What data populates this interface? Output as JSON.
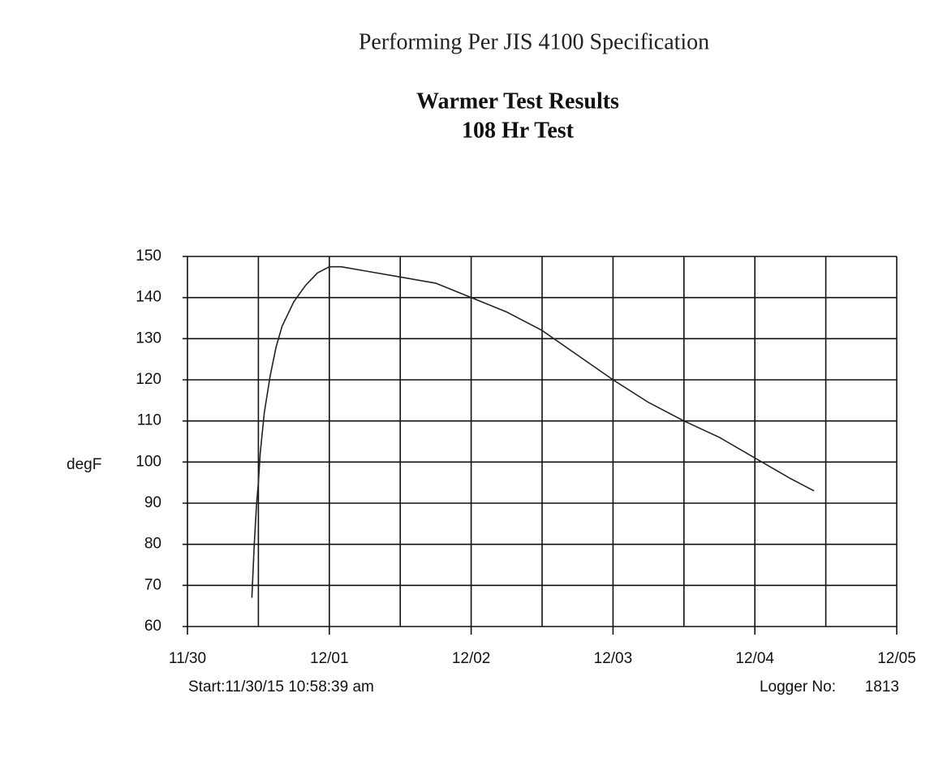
{
  "chart_data": {
    "type": "line",
    "header": "Performing Per JIS 4100 Specification",
    "title": "Warmer Test Results",
    "subtitle": "108 Hr Test",
    "y_label": "degF",
    "start_note": "Start:11/30/15 10:58:39 am",
    "logger_label": "Logger No:",
    "logger_number": "1813",
    "x": [
      10.9,
      11.3,
      11.7,
      12.0,
      12.3,
      13,
      14,
      15,
      16,
      18,
      20,
      22,
      24,
      26,
      30,
      36,
      42,
      48,
      54,
      60,
      66,
      72,
      78,
      84,
      90,
      96,
      102,
      106
    ],
    "series": [
      {
        "color": "#222222",
        "values": [
          67,
          80,
          90,
          95,
          102,
          112,
          121,
          128,
          133,
          139,
          143,
          146,
          147.5,
          147.5,
          146.5,
          145,
          143.5,
          140,
          136.5,
          132,
          126,
          120,
          114.5,
          110,
          106,
          101,
          96,
          93
        ]
      }
    ],
    "xlim": [
      0,
      120
    ],
    "xticks": [
      {
        "value": 0,
        "label": "11/30"
      },
      {
        "value": 24,
        "label": "12/01"
      },
      {
        "value": 48,
        "label": "12/02"
      },
      {
        "value": 72,
        "label": "12/03"
      },
      {
        "value": 96,
        "label": "12/04"
      },
      {
        "value": 120,
        "label": "12/05"
      }
    ],
    "x_minor_ticks": [
      12,
      36,
      60,
      84,
      108
    ],
    "ylim": [
      60,
      150
    ],
    "yticks": [
      60,
      70,
      80,
      90,
      100,
      110,
      120,
      130,
      140,
      150
    ],
    "grid": true
  }
}
